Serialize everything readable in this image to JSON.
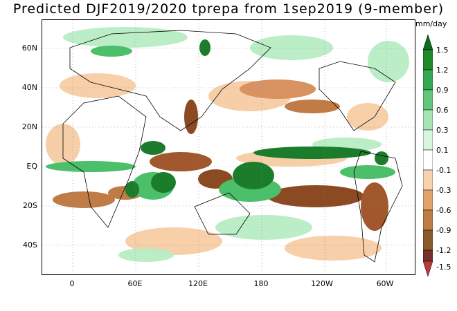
{
  "title": "Predicted DJF2019/2020 tprepa from 1sep2019 (9-member)",
  "units": "mm/day",
  "latitude_labels": [
    "60N",
    "40N",
    "20N",
    "EQ",
    "20S",
    "40S"
  ],
  "longitude_labels": [
    "0",
    "60E",
    "120E",
    "180",
    "120W",
    "60W"
  ],
  "colorbar": {
    "labels": [
      "1.5",
      "1.2",
      "0.9",
      "0.6",
      "0.3",
      "0.1",
      "-0.1",
      "-0.3",
      "-0.6",
      "-0.9",
      "-1.2",
      "-1.5"
    ],
    "colors": [
      "#0d6b1c",
      "#1e8a2a",
      "#34a853",
      "#62c77d",
      "#a6e3b5",
      "#d9f5df",
      "#ffffff",
      "#f7d3ad",
      "#e2a36b",
      "#c07c46",
      "#8a5a2c",
      "#7a2f2a",
      "#b83a3a"
    ]
  },
  "map_colors": {
    "wet_dark": "#1b7d2b",
    "wet_mid": "#4cbf6a",
    "wet_light": "#b7ecc4",
    "dry_light": "#f6caa0",
    "dry_mid": "#d99261",
    "dry_dark": "#8c4a22",
    "grid": "#888888",
    "coast": "#000000"
  }
}
